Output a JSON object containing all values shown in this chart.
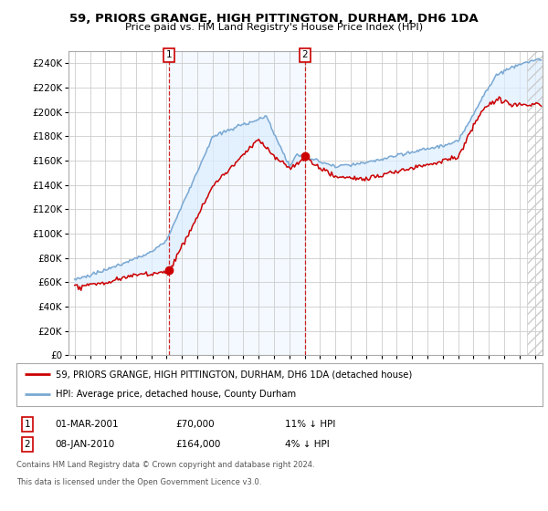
{
  "title": "59, PRIORS GRANGE, HIGH PITTINGTON, DURHAM, DH6 1DA",
  "subtitle": "Price paid vs. HM Land Registry's House Price Index (HPI)",
  "red_label": "59, PRIORS GRANGE, HIGH PITTINGTON, DURHAM, DH6 1DA (detached house)",
  "blue_label": "HPI: Average price, detached house, County Durham",
  "annotation1": {
    "num": "1",
    "date": "01-MAR-2001",
    "price": "£70,000",
    "note": "11% ↓ HPI"
  },
  "annotation2": {
    "num": "2",
    "date": "08-JAN-2010",
    "price": "£164,000",
    "note": "4% ↓ HPI"
  },
  "footer": [
    "Contains HM Land Registry data © Crown copyright and database right 2024.",
    "This data is licensed under the Open Government Licence v3.0."
  ],
  "ylim": [
    0,
    250000
  ],
  "yticks": [
    0,
    20000,
    40000,
    60000,
    80000,
    100000,
    120000,
    140000,
    160000,
    180000,
    200000,
    220000,
    240000
  ],
  "background_color": "#ffffff",
  "grid_color": "#cccccc",
  "red_color": "#cc0000",
  "blue_color": "#7aa8d2",
  "fill_color": "#ddeeff"
}
